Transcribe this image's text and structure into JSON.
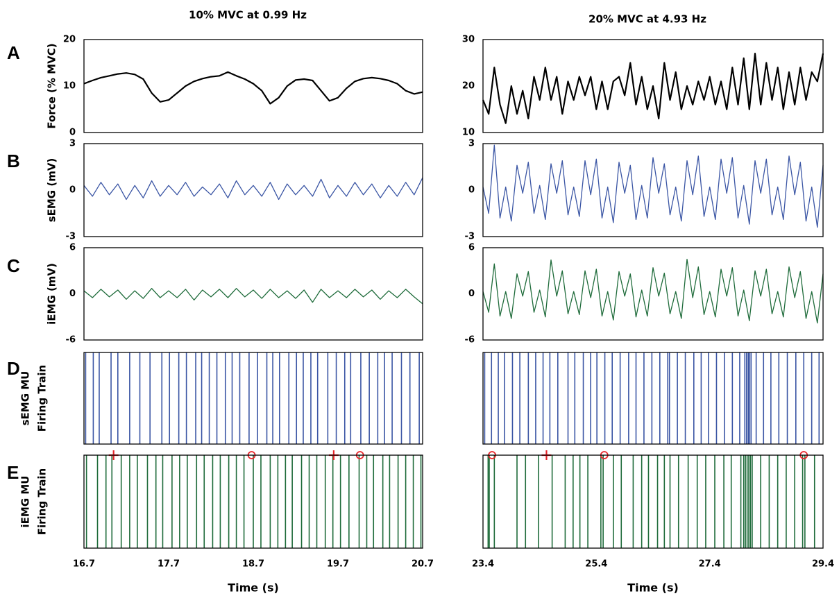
{
  "panel_labels": [
    "A",
    "B",
    "C",
    "D",
    "E"
  ],
  "chart_data": [
    {
      "type": "panels",
      "title": "10% MVC at 0.99 Hz",
      "xlabel": "Time (s)",
      "xlim": [
        16.7,
        20.7
      ],
      "xticks": [
        16.7,
        17.7,
        18.7,
        19.7,
        20.7
      ],
      "panels": [
        {
          "type": "line",
          "ylabel": [
            "Force (% MVC)"
          ],
          "ylim": [
            0,
            20
          ],
          "yticks": [
            0,
            10,
            20
          ],
          "color": "#000000",
          "x": [
            16.7,
            16.8,
            16.9,
            17.0,
            17.1,
            17.2,
            17.3,
            17.4,
            17.5,
            17.6,
            17.7,
            17.8,
            17.9,
            18.0,
            18.1,
            18.2,
            18.3,
            18.4,
            18.5,
            18.6,
            18.7,
            18.8,
            18.9,
            19.0,
            19.1,
            19.2,
            19.3,
            19.4,
            19.5,
            19.6,
            19.7,
            19.8,
            19.9,
            20.0,
            20.1,
            20.2,
            20.3,
            20.4,
            20.5,
            20.6,
            20.7
          ],
          "values": [
            10.5,
            11.2,
            11.8,
            12.2,
            12.6,
            12.8,
            12.5,
            11.5,
            8.5,
            6.6,
            7.0,
            8.5,
            10.0,
            11.0,
            11.6,
            12.0,
            12.2,
            13.0,
            12.2,
            11.5,
            10.5,
            9.0,
            6.2,
            7.5,
            10.0,
            11.3,
            11.5,
            11.2,
            9.0,
            6.8,
            7.5,
            9.5,
            11.0,
            11.6,
            11.8,
            11.6,
            11.2,
            10.5,
            9.0,
            8.3,
            8.7
          ]
        },
        {
          "type": "line",
          "ylabel": [
            "sEMG (mV)"
          ],
          "ylim": [
            -3,
            3
          ],
          "yticks": [
            -3,
            0,
            3
          ],
          "color": "#3a55a4",
          "x": [
            16.7,
            16.8,
            16.9,
            17.0,
            17.1,
            17.2,
            17.3,
            17.4,
            17.5,
            17.6,
            17.7,
            17.8,
            17.9,
            18.0,
            18.1,
            18.2,
            18.3,
            18.4,
            18.5,
            18.6,
            18.7,
            18.8,
            18.9,
            19.0,
            19.1,
            19.2,
            19.3,
            19.4,
            19.5,
            19.6,
            19.7,
            19.8,
            19.9,
            20.0,
            20.1,
            20.2,
            20.3,
            20.4,
            20.5,
            20.6,
            20.7
          ],
          "values": [
            0.3,
            -0.4,
            0.5,
            -0.3,
            0.4,
            -0.6,
            0.3,
            -0.5,
            0.6,
            -0.4,
            0.3,
            -0.3,
            0.5,
            -0.4,
            0.2,
            -0.3,
            0.4,
            -0.5,
            0.6,
            -0.3,
            0.3,
            -0.4,
            0.5,
            -0.6,
            0.4,
            -0.3,
            0.3,
            -0.4,
            0.7,
            -0.5,
            0.3,
            -0.4,
            0.5,
            -0.3,
            0.4,
            -0.5,
            0.3,
            -0.4,
            0.5,
            -0.3,
            0.8
          ]
        },
        {
          "type": "line",
          "ylabel": [
            "iEMG (mV)"
          ],
          "ylim": [
            -6,
            6
          ],
          "yticks": [
            -6,
            0,
            6
          ],
          "color": "#1e6b3a",
          "x": [
            16.7,
            16.8,
            16.9,
            17.0,
            17.1,
            17.2,
            17.3,
            17.4,
            17.5,
            17.6,
            17.7,
            17.8,
            17.9,
            18.0,
            18.1,
            18.2,
            18.3,
            18.4,
            18.5,
            18.6,
            18.7,
            18.8,
            18.9,
            19.0,
            19.1,
            19.2,
            19.3,
            19.4,
            19.5,
            19.6,
            19.7,
            19.8,
            19.9,
            20.0,
            20.1,
            20.2,
            20.3,
            20.4,
            20.5,
            20.6,
            20.7
          ],
          "values": [
            0.4,
            -0.5,
            0.6,
            -0.4,
            0.5,
            -0.7,
            0.4,
            -0.6,
            0.7,
            -0.5,
            0.4,
            -0.5,
            0.6,
            -0.8,
            0.5,
            -0.4,
            0.6,
            -0.5,
            0.7,
            -0.4,
            0.5,
            -0.6,
            0.6,
            -0.5,
            0.4,
            -0.6,
            0.5,
            -1.1,
            0.6,
            -0.5,
            0.4,
            -0.5,
            0.6,
            -0.4,
            0.5,
            -0.7,
            0.4,
            -0.5,
            0.6,
            -0.4,
            -1.3
          ]
        },
        {
          "type": "raster",
          "ylabel": [
            "sEMG MU",
            "Firing Train"
          ],
          "color": "#3a55a4",
          "x": [
            16.72,
            16.81,
            16.88,
            17.02,
            17.1,
            17.24,
            17.36,
            17.48,
            17.62,
            17.71,
            17.82,
            17.91,
            18.02,
            18.09,
            18.18,
            18.27,
            18.37,
            18.45,
            18.54,
            18.65,
            18.75,
            18.86,
            18.93,
            19.01,
            19.12,
            19.21,
            19.29,
            19.38,
            19.46,
            19.58,
            19.68,
            19.78,
            19.85,
            19.97,
            20.07,
            20.17,
            20.25,
            20.34,
            20.45,
            20.55,
            20.66
          ]
        },
        {
          "type": "raster",
          "ylabel": [
            "iEMG MU",
            "Firing Train"
          ],
          "color": "#1e6b3a",
          "x": [
            16.73,
            16.86,
            16.96,
            17.03,
            17.14,
            17.24,
            17.33,
            17.45,
            17.55,
            17.63,
            17.74,
            17.83,
            17.92,
            18.03,
            18.12,
            18.22,
            18.31,
            18.41,
            18.5,
            18.59,
            18.7,
            18.79,
            18.9,
            18.99,
            19.08,
            19.16,
            19.27,
            19.36,
            19.45,
            19.55,
            19.64,
            19.73,
            19.83,
            19.95,
            20.04,
            20.12,
            20.23,
            20.31,
            20.41,
            20.5,
            20.59,
            20.68
          ],
          "markers": [
            {
              "x": 17.05,
              "symbol": "plus",
              "color": "#e8262b"
            },
            {
              "x": 18.68,
              "symbol": "circle",
              "color": "#e8262b"
            },
            {
              "x": 19.65,
              "symbol": "plus",
              "color": "#e8262b"
            },
            {
              "x": 19.96,
              "symbol": "circle",
              "color": "#e8262b"
            }
          ]
        }
      ]
    },
    {
      "type": "panels",
      "title": "20% MVC at 4.93 Hz",
      "xlabel": "Time (s)",
      "xlim": [
        23.4,
        29.4
      ],
      "xticks": [
        23.4,
        25.4,
        27.4,
        29.4
      ],
      "panels": [
        {
          "type": "line",
          "ylim": [
            10,
            30
          ],
          "yticks": [
            10,
            20,
            30
          ],
          "color": "#000000",
          "x": [
            23.4,
            23.5,
            23.6,
            23.7,
            23.8,
            23.9,
            24.0,
            24.1,
            24.2,
            24.3,
            24.4,
            24.5,
            24.6,
            24.7,
            24.8,
            24.9,
            25.0,
            25.1,
            25.2,
            25.3,
            25.4,
            25.5,
            25.6,
            25.7,
            25.8,
            25.9,
            26.0,
            26.1,
            26.2,
            26.3,
            26.4,
            26.5,
            26.6,
            26.7,
            26.8,
            26.9,
            27.0,
            27.1,
            27.2,
            27.3,
            27.4,
            27.5,
            27.6,
            27.7,
            27.8,
            27.9,
            28.0,
            28.1,
            28.2,
            28.3,
            28.4,
            28.5,
            28.6,
            28.7,
            28.8,
            28.9,
            29.0,
            29.1,
            29.2,
            29.3,
            29.4
          ],
          "values": [
            17,
            14,
            24,
            16,
            12,
            20,
            14,
            19,
            13,
            22,
            17,
            24,
            17,
            22,
            14,
            21,
            17,
            22,
            18,
            22,
            15,
            21,
            15,
            21,
            22,
            18,
            25,
            16,
            22,
            15,
            20,
            13,
            25,
            17,
            23,
            15,
            20,
            16,
            21,
            17,
            22,
            16,
            21,
            15,
            24,
            16,
            26,
            15,
            27,
            16,
            25,
            17,
            24,
            15,
            23,
            16,
            24,
            17,
            23,
            21,
            27
          ]
        },
        {
          "type": "line",
          "ylim": [
            -3,
            3
          ],
          "yticks": [
            -3,
            0,
            3
          ],
          "color": "#3a55a4",
          "x": [
            23.4,
            23.5,
            23.6,
            23.7,
            23.8,
            23.9,
            24.0,
            24.1,
            24.2,
            24.3,
            24.4,
            24.5,
            24.6,
            24.7,
            24.8,
            24.9,
            25.0,
            25.1,
            25.2,
            25.3,
            25.4,
            25.5,
            25.6,
            25.7,
            25.8,
            25.9,
            26.0,
            26.1,
            26.2,
            26.3,
            26.4,
            26.5,
            26.6,
            26.7,
            26.8,
            26.9,
            27.0,
            27.1,
            27.2,
            27.3,
            27.4,
            27.5,
            27.6,
            27.7,
            27.8,
            27.9,
            28.0,
            28.1,
            28.2,
            28.3,
            28.4,
            28.5,
            28.6,
            28.7,
            28.8,
            28.9,
            29.0,
            29.1,
            29.2,
            29.3,
            29.4
          ],
          "values": [
            0.2,
            -1.5,
            2.9,
            -1.8,
            0.2,
            -2.0,
            1.6,
            -0.2,
            1.8,
            -1.5,
            0.3,
            -1.9,
            1.7,
            -0.2,
            1.9,
            -1.6,
            0.2,
            -1.7,
            1.9,
            -0.3,
            2.0,
            -1.8,
            0.2,
            -2.1,
            1.8,
            -0.2,
            1.6,
            -1.9,
            0.3,
            -1.8,
            2.1,
            -0.2,
            1.7,
            -1.6,
            0.2,
            -2.0,
            1.9,
            -0.3,
            2.2,
            -1.7,
            0.2,
            -1.9,
            2.0,
            -0.2,
            2.1,
            -1.8,
            0.3,
            -2.2,
            1.9,
            -0.2,
            2.0,
            -1.6,
            0.2,
            -1.9,
            2.2,
            -0.3,
            1.8,
            -2.0,
            0.2,
            -2.4,
            1.6
          ]
        },
        {
          "type": "line",
          "ylim": [
            -6,
            6
          ],
          "yticks": [
            -6,
            0,
            6
          ],
          "color": "#1e6b3a",
          "x": [
            23.4,
            23.5,
            23.6,
            23.7,
            23.8,
            23.9,
            24.0,
            24.1,
            24.2,
            24.3,
            24.4,
            24.5,
            24.6,
            24.7,
            24.8,
            24.9,
            25.0,
            25.1,
            25.2,
            25.3,
            25.4,
            25.5,
            25.6,
            25.7,
            25.8,
            25.9,
            26.0,
            26.1,
            26.2,
            26.3,
            26.4,
            26.5,
            26.6,
            26.7,
            26.8,
            26.9,
            27.0,
            27.1,
            27.2,
            27.3,
            27.4,
            27.5,
            27.6,
            27.7,
            27.8,
            27.9,
            28.0,
            28.1,
            28.2,
            28.3,
            28.4,
            28.5,
            28.6,
            28.7,
            28.8,
            28.9,
            29.0,
            29.1,
            29.2,
            29.3,
            29.4
          ],
          "values": [
            0.3,
            -2.4,
            3.9,
            -2.9,
            0.3,
            -3.2,
            2.6,
            -0.3,
            2.9,
            -2.4,
            0.5,
            -3.0,
            4.4,
            -0.3,
            3.0,
            -2.6,
            0.3,
            -2.7,
            3.0,
            -0.5,
            3.2,
            -2.9,
            0.3,
            -3.4,
            2.9,
            -0.3,
            2.6,
            -3.0,
            0.5,
            -2.9,
            3.4,
            -0.3,
            2.7,
            -2.6,
            0.3,
            -3.2,
            4.5,
            -0.5,
            3.5,
            -2.7,
            0.3,
            -3.0,
            3.2,
            -0.3,
            3.4,
            -2.9,
            0.5,
            -3.5,
            3.0,
            -0.3,
            3.2,
            -2.6,
            0.3,
            -3.0,
            3.5,
            -0.5,
            2.9,
            -3.2,
            0.3,
            -3.8,
            2.6
          ]
        },
        {
          "type": "raster",
          "color": "#3a55a4",
          "x": [
            23.43,
            23.55,
            23.67,
            23.78,
            23.92,
            24.05,
            24.2,
            24.33,
            24.46,
            24.58,
            24.72,
            24.9,
            25.02,
            25.17,
            25.3,
            25.41,
            25.55,
            25.68,
            25.82,
            25.97,
            26.1,
            26.24,
            26.38,
            26.52,
            26.66,
            26.69,
            26.83,
            26.97,
            27.12,
            27.25,
            27.38,
            27.52,
            27.66,
            27.8,
            27.93,
            28.02,
            28.05,
            28.08,
            28.1,
            28.13,
            28.22,
            28.35,
            28.48,
            28.62,
            28.77,
            28.92,
            29.06,
            29.2,
            29.33
          ]
        },
        {
          "type": "raster",
          "color": "#1e6b3a",
          "x": [
            23.49,
            23.51,
            23.6,
            24.0,
            24.15,
            24.38,
            24.62,
            24.85,
            24.99,
            25.11,
            25.25,
            25.48,
            25.52,
            25.7,
            25.84,
            26.05,
            26.2,
            26.32,
            26.48,
            26.6,
            26.7,
            26.85,
            27.02,
            27.18,
            27.33,
            27.49,
            27.65,
            27.78,
            27.95,
            28.0,
            28.03,
            28.06,
            28.09,
            28.12,
            28.15,
            28.3,
            28.45,
            28.6,
            28.75,
            28.9,
            29.04,
            29.08,
            29.25
          ],
          "markers": [
            {
              "x": 23.56,
              "symbol": "circle",
              "color": "#e8262b"
            },
            {
              "x": 24.52,
              "symbol": "plus",
              "color": "#e8262b"
            },
            {
              "x": 25.54,
              "symbol": "circle",
              "color": "#e8262b"
            },
            {
              "x": 29.06,
              "symbol": "circle",
              "color": "#e8262b"
            }
          ]
        }
      ]
    }
  ]
}
